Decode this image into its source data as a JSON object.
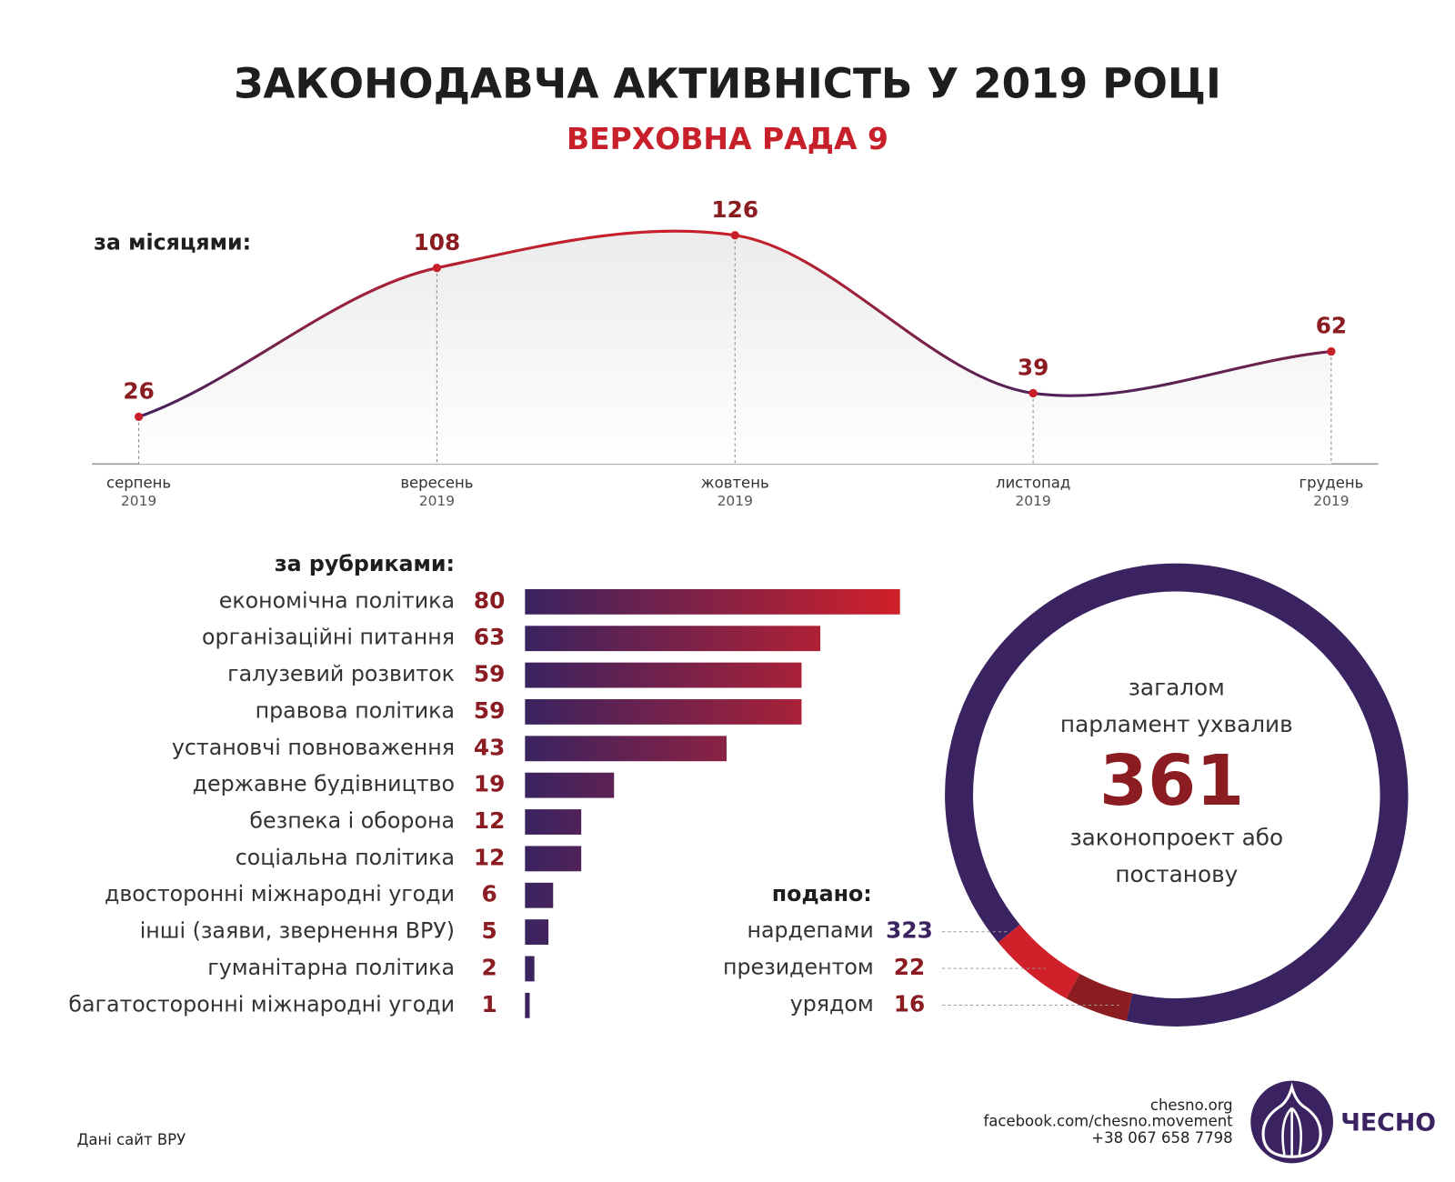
{
  "header": {
    "title": "ЗАКОНОДАВЧА АКТИВНІСТЬ У 2019 РОЦІ",
    "subtitle": "ВЕРХОВНА РАДА 9"
  },
  "chart_data": [
    {
      "type": "line",
      "label": "за місяцями:",
      "categories": [
        "серпень",
        "вересень",
        "жовтень",
        "листопад",
        "грудень"
      ],
      "category_years": [
        "2019",
        "2019",
        "2019",
        "2019",
        "2019"
      ],
      "values": [
        26,
        108,
        126,
        39,
        62
      ],
      "color_start": "#c8202a",
      "color_end": "#3a2360",
      "label_color": "#8b1c22"
    },
    {
      "type": "bar",
      "label": "за рубриками:",
      "categories": [
        "економічна політика",
        "організаційні питання",
        "галузевий розвиток",
        "правова політика",
        "установчі повноваження",
        "державне будівництво",
        "безпека і оборона",
        "соціальна політика",
        "двосторонні міжнародні угоди",
        "інші (заяви, звернення ВРУ)",
        "гуманітарна політика",
        "багатосторонні міжнародні угоди"
      ],
      "values": [
        80,
        63,
        59,
        59,
        43,
        19,
        12,
        12,
        6,
        5,
        2,
        1
      ],
      "color_start": "#3a2360",
      "color_end": "#d0202a",
      "label_color": "#8b1c22"
    },
    {
      "type": "donut",
      "center_text_before": [
        "загалом",
        "парламент ухвалив"
      ],
      "total": "361",
      "center_text_after": [
        "законопроект або",
        "постанову"
      ],
      "legend_title": "подано:",
      "categories": [
        "нардепами",
        "президентом",
        "урядом"
      ],
      "values": [
        323,
        22,
        16
      ],
      "colors": [
        "#3a2360",
        "#d0202a",
        "#8b1c22"
      ],
      "label_colors": [
        "#3a2360",
        "#8b1c22",
        "#8b1c22"
      ]
    }
  ],
  "footer": {
    "source": "Дані сайт ВРУ",
    "contacts": [
      "chesno.org",
      "facebook.com/chesno.movement",
      "+38 067 658 7798"
    ],
    "logo": "ЧЕСНО"
  }
}
